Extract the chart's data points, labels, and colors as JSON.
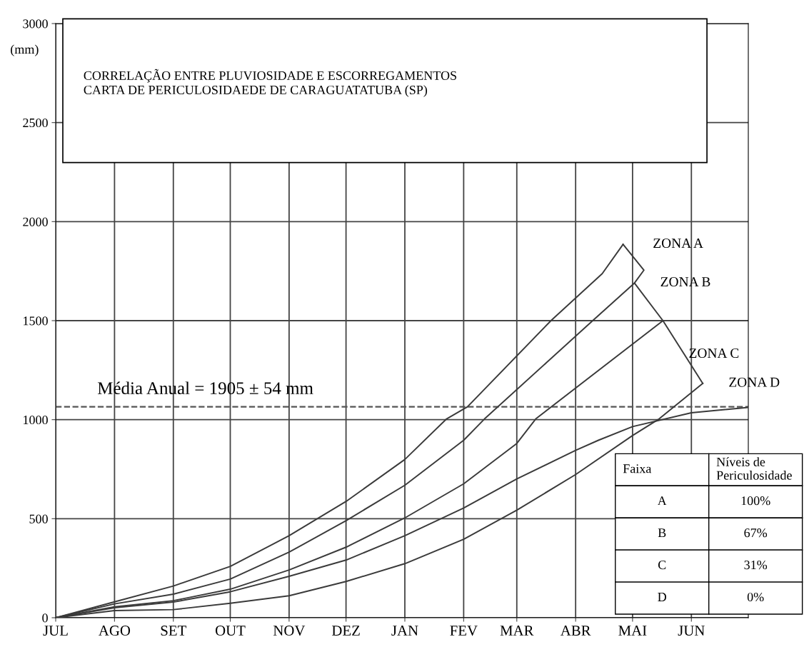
{
  "chart_data": {
    "type": "line",
    "title": "CORRELAÇÃO ENTRE PLUVIOSIDADE E ESCORREGAMENTOS\nCARTA DE PERICULOSIDAEDE DE CARAGUATATUBA (SP)",
    "ylabel": "(mm)",
    "xlim": [
      "2000-07-01",
      "2001-07-01"
    ],
    "xticks": [
      {
        "value": "2000-07-01",
        "label": "JUL"
      },
      {
        "value": "2000-08-01",
        "label": "AGO"
      },
      {
        "value": "2000-09-01",
        "label": "SET"
      },
      {
        "value": "2000-10-01",
        "label": "OUT"
      },
      {
        "value": "2000-11-01",
        "label": "NOV"
      },
      {
        "value": "2000-12-01",
        "label": "DEZ"
      },
      {
        "value": "2001-01-01",
        "label": "JAN"
      },
      {
        "value": "2001-02-01",
        "label": "FEV"
      },
      {
        "value": "2001-03-01",
        "label": "MAR"
      },
      {
        "value": "2001-04-01",
        "label": "ABR"
      },
      {
        "value": "2001-05-01",
        "label": "MAI"
      },
      {
        "value": "2001-06-01",
        "label": "JUN"
      }
    ],
    "ylim": [
      0,
      3000
    ],
    "yticks": [
      0,
      500,
      1000,
      1500,
      2000,
      2500,
      3000
    ],
    "grid": true,
    "marker": "none",
    "line_style": "solid",
    "series": [
      {
        "color": "#3a3a3a",
        "x": [
          "2000-07-01",
          "2000-08-01",
          "2000-09-01",
          "2000-10-01",
          "2000-11-01",
          "2000-12-01",
          "2001-01-01",
          "2001-01-23",
          "2001-02-03",
          "2001-03-19",
          "2001-04-15",
          "2001-04-26"
        ],
        "values": [
          0,
          80,
          160,
          259,
          414,
          587,
          799,
          1004,
          1065,
          1500,
          1737,
          1885
        ]
      },
      {
        "color": "#3a3a3a",
        "x": [
          "2000-07-01",
          "2000-08-01",
          "2000-09-01",
          "2000-10-01",
          "2000-11-01",
          "2000-12-01",
          "2001-01-01",
          "2001-02-01",
          "2001-02-12",
          "2001-04-10",
          "2001-05-02"
        ],
        "values": [
          0,
          70,
          119,
          195,
          331,
          490,
          669,
          896,
          1004,
          1500,
          1690
        ]
      },
      {
        "color": "#3a3a3a",
        "x": [
          "2000-07-01",
          "2000-08-01",
          "2000-09-01",
          "2000-10-01",
          "2000-11-01",
          "2000-12-01",
          "2001-01-01",
          "2001-02-01",
          "2001-03-01",
          "2001-03-11",
          "2001-05-17"
        ],
        "values": [
          0,
          55,
          86,
          144,
          241,
          356,
          504,
          676,
          880,
          1004,
          1500
        ]
      },
      {
        "color": "#3a3a3a",
        "x": [
          "2000-07-01",
          "2000-08-01",
          "2000-09-01",
          "2000-10-01",
          "2000-11-01",
          "2000-12-01",
          "2001-01-01",
          "2001-02-01",
          "2001-03-01",
          "2001-04-01",
          "2001-05-01",
          "2001-05-15",
          "2001-06-07"
        ],
        "values": [
          0,
          36,
          41,
          73,
          111,
          183,
          273,
          396,
          543,
          723,
          920,
          1004,
          1183
        ]
      },
      {
        "color": "#3a3a3a",
        "x": [
          "2000-07-01",
          "2000-08-01",
          "2000-09-01",
          "2000-10-01",
          "2000-11-01",
          "2000-12-01",
          "2001-01-01",
          "2001-02-01",
          "2001-03-01",
          "2001-04-01",
          "2001-04-13",
          "2001-05-01",
          "2001-06-01",
          "2001-07-01"
        ],
        "values": [
          0,
          50,
          79,
          131,
          209,
          291,
          414,
          554,
          701,
          845,
          896,
          965,
          1035,
          1062
        ]
      },
      {
        "color": "#3a3a3a",
        "x": [
          "2001-04-26",
          "2001-05-07",
          "2001-05-02",
          "2001-05-17",
          "2001-06-07"
        ],
        "values": [
          1885,
          1755,
          1690,
          1500,
          1183
        ]
      }
    ],
    "ref_lines": [
      {
        "axis": "y",
        "value": 1065,
        "color": "#555555",
        "line_style": "dashed"
      }
    ],
    "annotations": [
      "ZONA A",
      "ZONA B",
      "ZONA C",
      "ZONA D",
      "Média Anual = 1905 ± 54 mm",
      "Faixa",
      "Níveis de\nPericulosidade",
      "A",
      "100%",
      "B",
      "67%",
      "C",
      "31%",
      "D",
      "0%"
    ]
  }
}
